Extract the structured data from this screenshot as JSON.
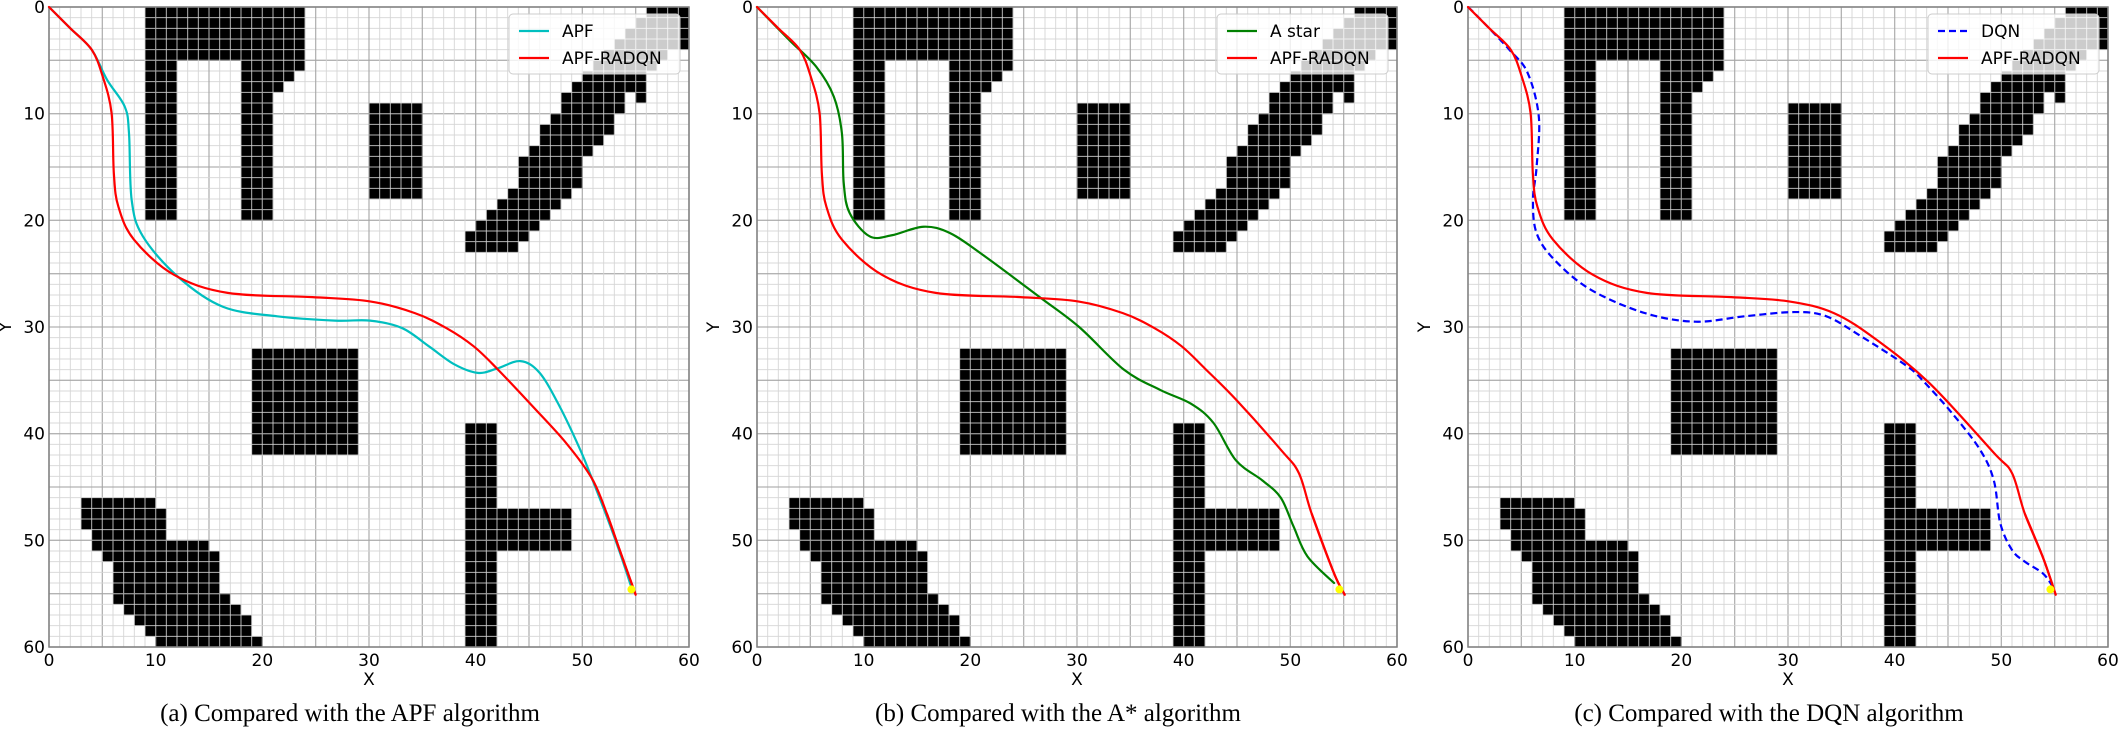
{
  "figure": {
    "captions": [
      "(a) Compared with the APF algorithm",
      "(b) Compared with the A* algorithm",
      "(c) Compared with the DQN algorithm"
    ]
  },
  "chart_data": [
    {
      "type": "line",
      "title": "(a) Compared with the APF algorithm",
      "xlabel": "X",
      "ylabel": "Y",
      "xlim": [
        0,
        60
      ],
      "ylim": [
        60,
        0
      ],
      "x_ticks": [
        0,
        10,
        20,
        30,
        40,
        50,
        60
      ],
      "y_ticks": [
        0,
        10,
        20,
        30,
        40,
        50,
        60
      ],
      "grid": true,
      "legend_position": "upper right",
      "start": [
        0,
        0
      ],
      "goal": [
        54.6,
        54.6
      ],
      "series": [
        {
          "name": "APF",
          "color": "#00bfbf",
          "style": "solid",
          "points": [
            [
              0,
              0
            ],
            [
              2,
              2
            ],
            [
              4,
              4
            ],
            [
              5.45,
              6.84
            ],
            [
              7.1,
              9.34
            ],
            [
              7.5,
              11.84
            ],
            [
              7.75,
              18.1
            ],
            [
              8.8,
              21.5
            ],
            [
              12.1,
              25.3
            ],
            [
              16.3,
              28.1
            ],
            [
              21.4,
              29.0
            ],
            [
              26.8,
              29.4
            ],
            [
              30.1,
              29.4
            ],
            [
              33.1,
              30.1
            ],
            [
              35.6,
              31.8
            ],
            [
              38.0,
              33.5
            ],
            [
              40.2,
              34.3
            ],
            [
              42.0,
              33.9
            ],
            [
              44.2,
              33.2
            ],
            [
              46.0,
              34.3
            ],
            [
              47.9,
              37.5
            ],
            [
              49.8,
              41.5
            ],
            [
              50.9,
              44.2
            ],
            [
              52.3,
              47.8
            ],
            [
              53.5,
              51.1
            ],
            [
              54.6,
              54.4
            ]
          ]
        },
        {
          "name": "APF-RADQN",
          "color": "#ff0000",
          "style": "solid",
          "points": [
            [
              0,
              0
            ],
            [
              2,
              2
            ],
            [
              4,
              4
            ],
            [
              5.03,
              6.5
            ],
            [
              5.87,
              9.97
            ],
            [
              6.08,
              15.6
            ],
            [
              6.5,
              18.7
            ],
            [
              7.96,
              21.8
            ],
            [
              11.7,
              25.1
            ],
            [
              16.75,
              26.8
            ],
            [
              24.7,
              27.2
            ],
            [
              30.1,
              27.6
            ],
            [
              34.3,
              28.7
            ],
            [
              37.25,
              30.1
            ],
            [
              39.8,
              31.8
            ],
            [
              42.0,
              33.9
            ],
            [
              45.4,
              37.5
            ],
            [
              48.5,
              40.9
            ],
            [
              50.9,
              44.2
            ],
            [
              52.3,
              47.5
            ],
            [
              53.5,
              50.9
            ],
            [
              55.0,
              55.1
            ]
          ]
        }
      ]
    },
    {
      "type": "line",
      "title": "(b) Compared with the A* algorithm",
      "xlabel": "X",
      "ylabel": "Y",
      "xlim": [
        0,
        60
      ],
      "ylim": [
        60,
        0
      ],
      "x_ticks": [
        0,
        10,
        20,
        30,
        40,
        50,
        60
      ],
      "y_ticks": [
        0,
        10,
        20,
        30,
        40,
        50,
        60
      ],
      "grid": true,
      "legend_position": "upper right",
      "start": [
        0,
        0
      ],
      "goal": [
        54.6,
        54.6
      ],
      "series": [
        {
          "name": "A star",
          "color": "#008000",
          "style": "solid",
          "points": [
            [
              0,
              0
            ],
            [
              3.03,
              3.1
            ],
            [
              5.55,
              5.6
            ],
            [
              7.2,
              8.4
            ],
            [
              7.96,
              11.84
            ],
            [
              8.13,
              16.5
            ],
            [
              8.68,
              19.3
            ],
            [
              10.56,
              21.5
            ],
            [
              12.65,
              21.4
            ],
            [
              15.6,
              20.6
            ],
            [
              18.1,
              21.2
            ],
            [
              21.4,
              23.4
            ],
            [
              26.5,
              27.2
            ],
            [
              30.2,
              30.0
            ],
            [
              34.4,
              34.0
            ],
            [
              37.8,
              35.9
            ],
            [
              40.7,
              37.2
            ],
            [
              42.8,
              39.0
            ],
            [
              44.9,
              42.5
            ],
            [
              47.4,
              44.4
            ],
            [
              49.1,
              46.0
            ],
            [
              50.3,
              48.7
            ],
            [
              51.6,
              51.5
            ],
            [
              54.1,
              54.0
            ]
          ]
        },
        {
          "name": "APF-RADQN",
          "color": "#ff0000",
          "style": "solid",
          "points": [
            [
              0,
              0
            ],
            [
              2,
              2
            ],
            [
              4,
              4
            ],
            [
              5.03,
              6.5
            ],
            [
              5.87,
              9.97
            ],
            [
              6.08,
              15.6
            ],
            [
              6.5,
              18.7
            ],
            [
              7.96,
              21.8
            ],
            [
              11.7,
              25.1
            ],
            [
              16.75,
              26.8
            ],
            [
              24.7,
              27.2
            ],
            [
              30.1,
              27.6
            ],
            [
              34.3,
              28.7
            ],
            [
              37.25,
              30.1
            ],
            [
              39.8,
              31.8
            ],
            [
              42.0,
              33.9
            ],
            [
              44.9,
              36.8
            ],
            [
              49.1,
              41.5
            ],
            [
              50.8,
              43.7
            ],
            [
              52.0,
              47.5
            ],
            [
              54.1,
              53.1
            ],
            [
              55.1,
              55.1
            ]
          ]
        }
      ]
    },
    {
      "type": "line",
      "title": "(c) Compared with the DQN algorithm",
      "xlabel": "X",
      "ylabel": "Y",
      "xlim": [
        0,
        60
      ],
      "ylim": [
        60,
        0
      ],
      "x_ticks": [
        0,
        10,
        20,
        30,
        40,
        50,
        60
      ],
      "y_ticks": [
        0,
        10,
        20,
        30,
        40,
        50,
        60
      ],
      "grid": true,
      "legend_position": "upper right",
      "start": [
        0,
        0
      ],
      "goal": [
        54.6,
        54.6
      ],
      "series": [
        {
          "name": "DQN",
          "color": "#0000ff",
          "style": "dashed",
          "points": [
            [
              0,
              0
            ],
            [
              0.92,
              0.9
            ],
            [
              3.9,
              4.03
            ],
            [
              5.6,
              6.2
            ],
            [
              6.64,
              10.3
            ],
            [
              6.43,
              15.0
            ],
            [
              6.09,
              18.1
            ],
            [
              6.43,
              21.2
            ],
            [
              8.1,
              23.7
            ],
            [
              11.5,
              26.5
            ],
            [
              16.6,
              28.7
            ],
            [
              21.3,
              29.5
            ],
            [
              25.9,
              29.0
            ],
            [
              30.6,
              28.6
            ],
            [
              33.6,
              29.0
            ],
            [
              36.9,
              30.9
            ],
            [
              41.2,
              33.7
            ],
            [
              42.9,
              35.3
            ],
            [
              45.4,
              38.1
            ],
            [
              48.0,
              41.5
            ],
            [
              49.3,
              44.4
            ],
            [
              49.9,
              48.4
            ],
            [
              51.0,
              50.9
            ],
            [
              52.2,
              52.0
            ],
            [
              53.9,
              53.1
            ],
            [
              54.8,
              54.3
            ]
          ]
        },
        {
          "name": "APF-RADQN",
          "color": "#ff0000",
          "style": "solid",
          "points": [
            [
              0,
              0
            ],
            [
              2,
              2
            ],
            [
              4,
              4
            ],
            [
              5.03,
              6.5
            ],
            [
              5.87,
              9.97
            ],
            [
              6.08,
              15.6
            ],
            [
              6.5,
              18.7
            ],
            [
              7.96,
              21.8
            ],
            [
              11.7,
              25.1
            ],
            [
              16.75,
              26.8
            ],
            [
              24.7,
              27.2
            ],
            [
              30.1,
              27.6
            ],
            [
              34.3,
              28.7
            ],
            [
              38.3,
              31.2
            ],
            [
              43.3,
              35.3
            ],
            [
              49.3,
              41.8
            ],
            [
              51.0,
              43.7
            ],
            [
              52.2,
              47.5
            ],
            [
              53.9,
              51.6
            ],
            [
              55.1,
              55.1
            ]
          ]
        }
      ]
    }
  ],
  "obstacles": {
    "description": "black grid cells, each row: [row_y, x_start, x_end) in grid units",
    "rows": [
      [
        0,
        9,
        24
      ],
      [
        1,
        9,
        24
      ],
      [
        2,
        9,
        24
      ],
      [
        3,
        9,
        24
      ],
      [
        4,
        9,
        24
      ],
      [
        5,
        9,
        12
      ],
      [
        5,
        18,
        24
      ],
      [
        6,
        9,
        12
      ],
      [
        6,
        18,
        23
      ],
      [
        7,
        9,
        12
      ],
      [
        7,
        18,
        22
      ],
      [
        8,
        9,
        12
      ],
      [
        8,
        18,
        21
      ],
      [
        9,
        9,
        12
      ],
      [
        9,
        18,
        21
      ],
      [
        10,
        9,
        12
      ],
      [
        10,
        18,
        21
      ],
      [
        11,
        9,
        12
      ],
      [
        11,
        18,
        21
      ],
      [
        12,
        9,
        12
      ],
      [
        12,
        18,
        21
      ],
      [
        13,
        9,
        12
      ],
      [
        13,
        18,
        21
      ],
      [
        14,
        9,
        12
      ],
      [
        14,
        18,
        21
      ],
      [
        15,
        9,
        12
      ],
      [
        15,
        18,
        21
      ],
      [
        16,
        9,
        12
      ],
      [
        16,
        18,
        21
      ],
      [
        17,
        9,
        12
      ],
      [
        17,
        18,
        21
      ],
      [
        18,
        9,
        12
      ],
      [
        18,
        18,
        21
      ],
      [
        19,
        9,
        12
      ],
      [
        19,
        18,
        21
      ],
      [
        9,
        30,
        35
      ],
      [
        10,
        30,
        35
      ],
      [
        11,
        30,
        35
      ],
      [
        12,
        30,
        35
      ],
      [
        13,
        30,
        35
      ],
      [
        14,
        30,
        35
      ],
      [
        15,
        30,
        35
      ],
      [
        16,
        30,
        35
      ],
      [
        17,
        30,
        35
      ],
      [
        0,
        56,
        60
      ],
      [
        1,
        55,
        60
      ],
      [
        2,
        54,
        60
      ],
      [
        3,
        53,
        60
      ],
      [
        4,
        52,
        58
      ],
      [
        5,
        51,
        57
      ],
      [
        6,
        50,
        56
      ],
      [
        7,
        49,
        56
      ],
      [
        8,
        48,
        54
      ],
      [
        8,
        55,
        56
      ],
      [
        9,
        48,
        54
      ],
      [
        10,
        47,
        53
      ],
      [
        11,
        46,
        53
      ],
      [
        12,
        46,
        52
      ],
      [
        13,
        45,
        51
      ],
      [
        14,
        44,
        50
      ],
      [
        15,
        44,
        50
      ],
      [
        16,
        44,
        50
      ],
      [
        17,
        43,
        49
      ],
      [
        18,
        42,
        48
      ],
      [
        19,
        41,
        47
      ],
      [
        20,
        40,
        46
      ],
      [
        21,
        39,
        45
      ],
      [
        22,
        39,
        44
      ],
      [
        32,
        19,
        29
      ],
      [
        33,
        19,
        29
      ],
      [
        34,
        19,
        29
      ],
      [
        35,
        19,
        29
      ],
      [
        36,
        19,
        29
      ],
      [
        37,
        19,
        29
      ],
      [
        38,
        19,
        29
      ],
      [
        39,
        19,
        29
      ],
      [
        40,
        19,
        29
      ],
      [
        41,
        19,
        29
      ],
      [
        39,
        39,
        42
      ],
      [
        40,
        39,
        42
      ],
      [
        41,
        39,
        42
      ],
      [
        42,
        39,
        42
      ],
      [
        43,
        39,
        42
      ],
      [
        44,
        39,
        42
      ],
      [
        45,
        39,
        42
      ],
      [
        46,
        39,
        42
      ],
      [
        47,
        39,
        49
      ],
      [
        48,
        39,
        49
      ],
      [
        49,
        39,
        49
      ],
      [
        50,
        39,
        49
      ],
      [
        51,
        39,
        42
      ],
      [
        52,
        39,
        42
      ],
      [
        53,
        39,
        42
      ],
      [
        54,
        39,
        42
      ],
      [
        55,
        39,
        42
      ],
      [
        56,
        39,
        42
      ],
      [
        57,
        39,
        42
      ],
      [
        58,
        39,
        42
      ],
      [
        59,
        39,
        42
      ],
      [
        46,
        3,
        10
      ],
      [
        47,
        3,
        11
      ],
      [
        48,
        3,
        11
      ],
      [
        49,
        4,
        11
      ],
      [
        50,
        4,
        15
      ],
      [
        51,
        5,
        16
      ],
      [
        52,
        6,
        16
      ],
      [
        53,
        6,
        16
      ],
      [
        54,
        6,
        16
      ],
      [
        55,
        6,
        17
      ],
      [
        56,
        7,
        18
      ],
      [
        57,
        8,
        19
      ],
      [
        58,
        9,
        19
      ],
      [
        59,
        10,
        20
      ]
    ]
  },
  "style": {
    "obstacle_color": "#000000",
    "minor_grid_color": "#d4d4d4",
    "major_grid_color": "#a6a6a6",
    "axis_color": "#808080",
    "goal_color": "#ffff00",
    "legend_bg": "rgba(255,255,255,0.8)",
    "legend_border": "#cccccc"
  }
}
